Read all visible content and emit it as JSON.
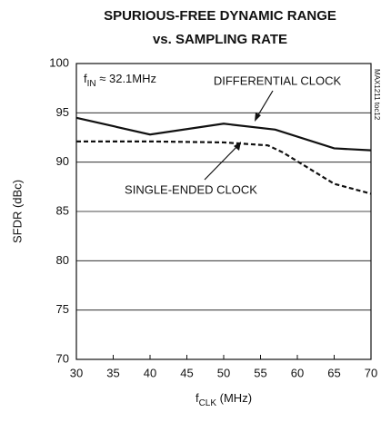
{
  "chart_data": {
    "type": "line",
    "title": [
      "SPURIOUS-FREE DYNAMIC RANGE",
      "vs. SAMPLING RATE"
    ],
    "y_label": "SFDR (dBc)",
    "x_label": {
      "base": "f",
      "sub": "CLK",
      "rest": " (MHz)"
    },
    "annotation": {
      "base": "f",
      "sub": "IN",
      "rest": " ≈ 32.1MHz"
    },
    "side_note": "MAX1211 toc12",
    "xlim": [
      30,
      70
    ],
    "xticks": [
      30,
      35,
      40,
      45,
      50,
      55,
      60,
      65,
      70
    ],
    "ylim": [
      70,
      100
    ],
    "yticks": [
      70,
      75,
      80,
      85,
      90,
      95,
      100
    ],
    "grid": true,
    "series": [
      {
        "name": "DIFFERENTIAL CLOCK",
        "color": "#111111",
        "dash": false,
        "x": [
          30,
          40,
          50,
          57,
          65,
          70
        ],
        "values": [
          94.5,
          92.8,
          93.9,
          93.3,
          91.4,
          91.2
        ]
      },
      {
        "name": "SINGLE-ENDED CLOCK",
        "color": "#111111",
        "dash": true,
        "x": [
          30,
          40,
          50,
          56,
          58,
          65,
          70
        ],
        "values": [
          92.1,
          92.1,
          92.0,
          91.7,
          91.0,
          87.8,
          86.8
        ]
      }
    ]
  }
}
